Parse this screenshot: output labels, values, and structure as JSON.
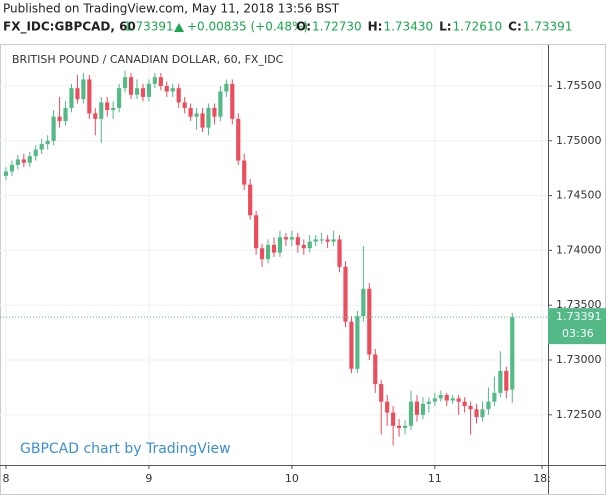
{
  "header": {
    "published": "Published on TradingView.com, May 11, 2018 13:56 BST",
    "symbol": "FX_IDC:GBPCAD, 60",
    "last": "1.73391",
    "change": "+0.00835 (+0.48%)",
    "ohlc": [
      {
        "label": "O:",
        "value": "1.72730"
      },
      {
        "label": "H:",
        "value": "1.73430"
      },
      {
        "label": "L:",
        "value": "1.72610"
      },
      {
        "label": "C:",
        "value": "1.73391"
      }
    ]
  },
  "chart_data": {
    "type": "candlestick",
    "title": "BRITISH POUND / CANADIAN DOLLAR, 60, FX_IDC",
    "watermark": "GBPCAD chart by TradingView",
    "up_color": "#53b987",
    "down_color": "#eb4d5c",
    "grid": true,
    "open": [
      1.7468,
      1.7472,
      1.7478,
      1.7483,
      1.748,
      1.7486,
      1.7492,
      1.7497,
      1.75,
      1.7522,
      1.7518,
      1.753,
      1.7548,
      1.7538,
      1.7556,
      1.7525,
      1.752,
      1.7535,
      1.7528,
      1.753,
      1.7548,
      1.7558,
      1.7542,
      1.7548,
      1.754,
      1.7552,
      1.7558,
      1.755,
      1.7545,
      1.7548,
      1.7535,
      1.753,
      1.7522,
      1.7525,
      1.7512,
      1.753,
      1.7522,
      1.7545,
      1.7552,
      1.752,
      1.7482,
      1.746,
      1.7432,
      1.7402,
      1.7392,
      1.7405,
      1.7398,
      1.7412,
      1.741,
      1.7412,
      1.7405,
      1.7402,
      1.7408,
      1.741,
      1.741,
      1.7408,
      1.741,
      1.7385,
      1.7335,
      1.7292,
      1.734,
      1.7365,
      1.7305,
      1.7278,
      1.7262,
      1.7252,
      1.724,
      1.7238,
      1.724,
      1.7262,
      1.725,
      1.726,
      1.7262,
      1.7265,
      1.7268,
      1.7263,
      1.7265,
      1.7262,
      1.7258,
      1.7255,
      1.7248,
      1.7255,
      1.7262,
      1.727,
      1.729,
      1.7273
    ],
    "high": [
      1.7476,
      1.7482,
      1.7487,
      1.7488,
      1.749,
      1.7496,
      1.7502,
      1.7505,
      1.7528,
      1.754,
      1.7536,
      1.7552,
      1.756,
      1.7562,
      1.756,
      1.753,
      1.754,
      1.754,
      1.7536,
      1.7552,
      1.7564,
      1.7562,
      1.7556,
      1.7552,
      1.7556,
      1.7562,
      1.7562,
      1.7554,
      1.7552,
      1.7552,
      1.754,
      1.7534,
      1.753,
      1.753,
      1.7534,
      1.7534,
      1.755,
      1.7556,
      1.7556,
      1.7525,
      1.7488,
      1.7465,
      1.7436,
      1.7406,
      1.741,
      1.7412,
      1.7418,
      1.7416,
      1.7418,
      1.7416,
      1.741,
      1.7414,
      1.7414,
      1.7416,
      1.7414,
      1.7418,
      1.7414,
      1.739,
      1.734,
      1.7345,
      1.7404,
      1.737,
      1.731,
      1.7282,
      1.7268,
      1.7258,
      1.7246,
      1.7245,
      1.7272,
      1.7268,
      1.7266,
      1.7266,
      1.727,
      1.7272,
      1.727,
      1.7268,
      1.7268,
      1.7266,
      1.7262,
      1.726,
      1.7262,
      1.7275,
      1.7285,
      1.7308,
      1.7294,
      1.7343
    ],
    "low": [
      1.7464,
      1.7468,
      1.7474,
      1.7476,
      1.7476,
      1.7482,
      1.7488,
      1.7492,
      1.7496,
      1.7512,
      1.7514,
      1.7526,
      1.7534,
      1.7534,
      1.752,
      1.7505,
      1.7498,
      1.7522,
      1.752,
      1.7526,
      1.7544,
      1.7538,
      1.7538,
      1.7536,
      1.7536,
      1.7548,
      1.7546,
      1.754,
      1.754,
      1.753,
      1.7525,
      1.7518,
      1.751,
      1.7508,
      1.7505,
      1.7515,
      1.7518,
      1.754,
      1.7515,
      1.7478,
      1.7455,
      1.7428,
      1.7396,
      1.7385,
      1.7388,
      1.7394,
      1.7394,
      1.7404,
      1.7404,
      1.7398,
      1.7396,
      1.7398,
      1.7404,
      1.7406,
      1.7402,
      1.7404,
      1.738,
      1.733,
      1.7288,
      1.7288,
      1.7335,
      1.73,
      1.727,
      1.7232,
      1.724,
      1.7222,
      1.723,
      1.7232,
      1.7236,
      1.7244,
      1.7246,
      1.7252,
      1.7258,
      1.7262,
      1.7258,
      1.726,
      1.725,
      1.7252,
      1.7232,
      1.7242,
      1.7244,
      1.725,
      1.7258,
      1.7266,
      1.7265,
      1.7261
    ],
    "close": [
      1.7472,
      1.7478,
      1.7483,
      1.748,
      1.7486,
      1.7492,
      1.7497,
      1.75,
      1.7522,
      1.7518,
      1.753,
      1.7548,
      1.7538,
      1.7556,
      1.7525,
      1.752,
      1.7535,
      1.7528,
      1.753,
      1.7548,
      1.7558,
      1.7542,
      1.7548,
      1.754,
      1.7552,
      1.7558,
      1.755,
      1.7545,
      1.7548,
      1.7535,
      1.753,
      1.7522,
      1.7525,
      1.7512,
      1.753,
      1.7522,
      1.7545,
      1.7552,
      1.752,
      1.7482,
      1.746,
      1.7432,
      1.7402,
      1.7392,
      1.7405,
      1.7398,
      1.7412,
      1.741,
      1.7412,
      1.7405,
      1.7402,
      1.7408,
      1.741,
      1.741,
      1.7408,
      1.741,
      1.7385,
      1.7335,
      1.7292,
      1.734,
      1.7365,
      1.7305,
      1.7278,
      1.7262,
      1.7252,
      1.724,
      1.7238,
      1.724,
      1.7262,
      1.725,
      1.726,
      1.7262,
      1.7265,
      1.7268,
      1.7263,
      1.7265,
      1.7262,
      1.7258,
      1.7255,
      1.7248,
      1.7255,
      1.7262,
      1.727,
      1.729,
      1.7272,
      1.73391
    ],
    "xlim": [
      -1,
      91
    ],
    "xticks": [
      {
        "value": 0,
        "label": "8"
      },
      {
        "value": 24,
        "label": "9"
      },
      {
        "value": 48,
        "label": "10"
      },
      {
        "value": 72,
        "label": "11"
      },
      {
        "value": 90,
        "label": "18:"
      }
    ],
    "ylim": [
      1.72042,
      1.75874
    ],
    "yticks": [
      {
        "value": 1.725,
        "label": "1.72500"
      },
      {
        "value": 1.73,
        "label": "1.73000"
      },
      {
        "value": 1.735,
        "label": "1.73500"
      },
      {
        "value": 1.74,
        "label": "1.74000"
      },
      {
        "value": 1.745,
        "label": "1.74500"
      },
      {
        "value": 1.75,
        "label": "1.75000"
      },
      {
        "value": 1.755,
        "label": "1.75500"
      }
    ],
    "last_price": 1.73391,
    "countdown": "03:36"
  }
}
